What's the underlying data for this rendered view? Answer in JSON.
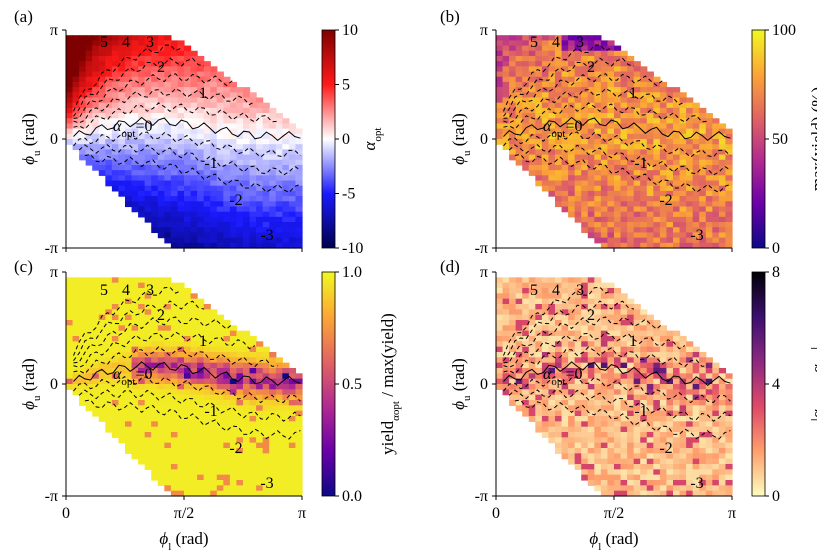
{
  "chart_data": [
    {
      "type": "heatmap",
      "panel": "(a)",
      "colormap": "seismic",
      "x_range": [
        0,
        3.1416
      ],
      "y_range": [
        -3.1416,
        3.1416
      ],
      "xticks": [
        {
          "value": 0,
          "label": "0"
        },
        {
          "value": 1.5708,
          "label": "π/2"
        },
        {
          "value": 3.1416,
          "label": "π"
        }
      ],
      "yticks": [
        {
          "value": -3.1416,
          "label": "-π"
        },
        {
          "value": 0,
          "label": "0"
        },
        {
          "value": 3.1416,
          "label": "π"
        }
      ],
      "ylabel": "ϕu (rad)",
      "colorbar": {
        "label": "αopt",
        "range": [
          -10,
          10
        ],
        "ticks": [
          {
            "value": 10,
            "label": "10"
          },
          {
            "value": 5,
            "label": "5"
          },
          {
            "value": 0,
            "label": "0"
          },
          {
            "value": -5,
            "label": "-5"
          },
          {
            "value": -10,
            "label": "-10"
          }
        ]
      },
      "contours": [
        {
          "label": "5",
          "value": 5
        },
        {
          "label": "4",
          "value": 4
        },
        {
          "label": "3",
          "value": 3
        },
        {
          "label": "2",
          "value": 2
        },
        {
          "label": "1",
          "value": 1
        },
        {
          "label": "αopt=0",
          "value": 0
        },
        {
          "label": "-1",
          "value": -1
        },
        {
          "label": "-2",
          "value": -2
        },
        {
          "label": "-3",
          "value": -3
        }
      ]
    },
    {
      "type": "heatmap",
      "panel": "(b)",
      "colormap": "plasma",
      "x_range": [
        0,
        3.1416
      ],
      "y_range": [
        -3.1416,
        3.1416
      ],
      "xticks": [
        {
          "value": 0,
          "label": "0"
        },
        {
          "value": 1.5708,
          "label": "π/2"
        },
        {
          "value": 3.1416,
          "label": "π"
        }
      ],
      "yticks": [
        {
          "value": -3.1416,
          "label": "-π"
        },
        {
          "value": 0,
          "label": "0"
        },
        {
          "value": 3.1416,
          "label": "π"
        }
      ],
      "ylabel": "ϕu (rad)",
      "colorbar": {
        "label": "max(yield) (%)",
        "range": [
          0,
          100
        ],
        "ticks": [
          {
            "value": 100,
            "label": "100"
          },
          {
            "value": 50,
            "label": "50"
          },
          {
            "value": 0,
            "label": "0"
          }
        ]
      },
      "contours": [
        {
          "label": "5",
          "value": 5
        },
        {
          "label": "4",
          "value": 4
        },
        {
          "label": "3",
          "value": 3
        },
        {
          "label": "2",
          "value": 2
        },
        {
          "label": "1",
          "value": 1
        },
        {
          "label": "αopt=0",
          "value": 0
        },
        {
          "label": "-1",
          "value": -1
        },
        {
          "label": "-2",
          "value": -2
        },
        {
          "label": "-3",
          "value": -3
        }
      ]
    },
    {
      "type": "heatmap",
      "panel": "(c)",
      "colormap": "plasma",
      "x_range": [
        0,
        3.1416
      ],
      "y_range": [
        -3.1416,
        3.1416
      ],
      "xticks": [
        {
          "value": 0,
          "label": "0"
        },
        {
          "value": 1.5708,
          "label": "π/2"
        },
        {
          "value": 3.1416,
          "label": "π"
        }
      ],
      "yticks": [
        {
          "value": -3.1416,
          "label": "-π"
        },
        {
          "value": 0,
          "label": "0"
        },
        {
          "value": 3.1416,
          "label": "π"
        }
      ],
      "xlabel": "ϕl (rad)",
      "ylabel": "ϕu (rad)",
      "colorbar": {
        "label": "yieldαopt / max(yield)",
        "range": [
          0,
          1
        ],
        "ticks": [
          {
            "value": 1,
            "label": "1.0"
          },
          {
            "value": 0.5,
            "label": "0.5"
          },
          {
            "value": 0,
            "label": "0.0"
          }
        ]
      },
      "contours": [
        {
          "label": "5",
          "value": 5
        },
        {
          "label": "4",
          "value": 4
        },
        {
          "label": "3",
          "value": 3
        },
        {
          "label": "2",
          "value": 2
        },
        {
          "label": "1",
          "value": 1
        },
        {
          "label": "αopt=0",
          "value": 0
        },
        {
          "label": "-1",
          "value": -1
        },
        {
          "label": "-2",
          "value": -2
        },
        {
          "label": "-3",
          "value": -3
        }
      ]
    },
    {
      "type": "heatmap",
      "panel": "(d)",
      "colormap": "magma_r",
      "x_range": [
        0,
        3.1416
      ],
      "y_range": [
        -3.1416,
        3.1416
      ],
      "xticks": [
        {
          "value": 0,
          "label": "0"
        },
        {
          "value": 1.5708,
          "label": "π/2"
        },
        {
          "value": 3.1416,
          "label": "π"
        }
      ],
      "yticks": [
        {
          "value": -3.1416,
          "label": "-π"
        },
        {
          "value": 0,
          "label": "0"
        },
        {
          "value": 3.1416,
          "label": "π"
        }
      ],
      "xlabel": "ϕl (rad)",
      "ylabel": "ϕu (rad)",
      "colorbar": {
        "label": "|αyield - αopt|",
        "range": [
          0,
          8
        ],
        "ticks": [
          {
            "value": 8,
            "label": "8"
          },
          {
            "value": 4,
            "label": "4"
          },
          {
            "value": 0,
            "label": "0"
          }
        ]
      },
      "contours": [
        {
          "label": "5",
          "value": 5
        },
        {
          "label": "4",
          "value": 4
        },
        {
          "label": "3",
          "value": 3
        },
        {
          "label": "2",
          "value": 2
        },
        {
          "label": "1",
          "value": 1
        },
        {
          "label": "αopt=0",
          "value": 0
        },
        {
          "label": "-1",
          "value": -1
        },
        {
          "label": "-2",
          "value": -2
        },
        {
          "label": "-3",
          "value": -3
        }
      ]
    }
  ],
  "labels": {
    "panels": [
      "(a)",
      "(b)",
      "(c)",
      "(d)"
    ],
    "phi_u": "ϕ",
    "phi_u_sub": "u",
    "phi_l": "ϕ",
    "phi_l_sub": "l",
    "rad": "(rad)",
    "alpha": "α",
    "opt": "opt",
    "yield_sym": "yield",
    "yield_sub": "yield",
    "eq0": "=0",
    "cb_a": "α",
    "cb_b": "max(yield) (%)",
    "cb_c_main": "yield",
    "cb_c_rest": " / max(yield)",
    "cb_d_open": "|α",
    "cb_d_mid": " - α",
    "cb_d_close": "|"
  }
}
